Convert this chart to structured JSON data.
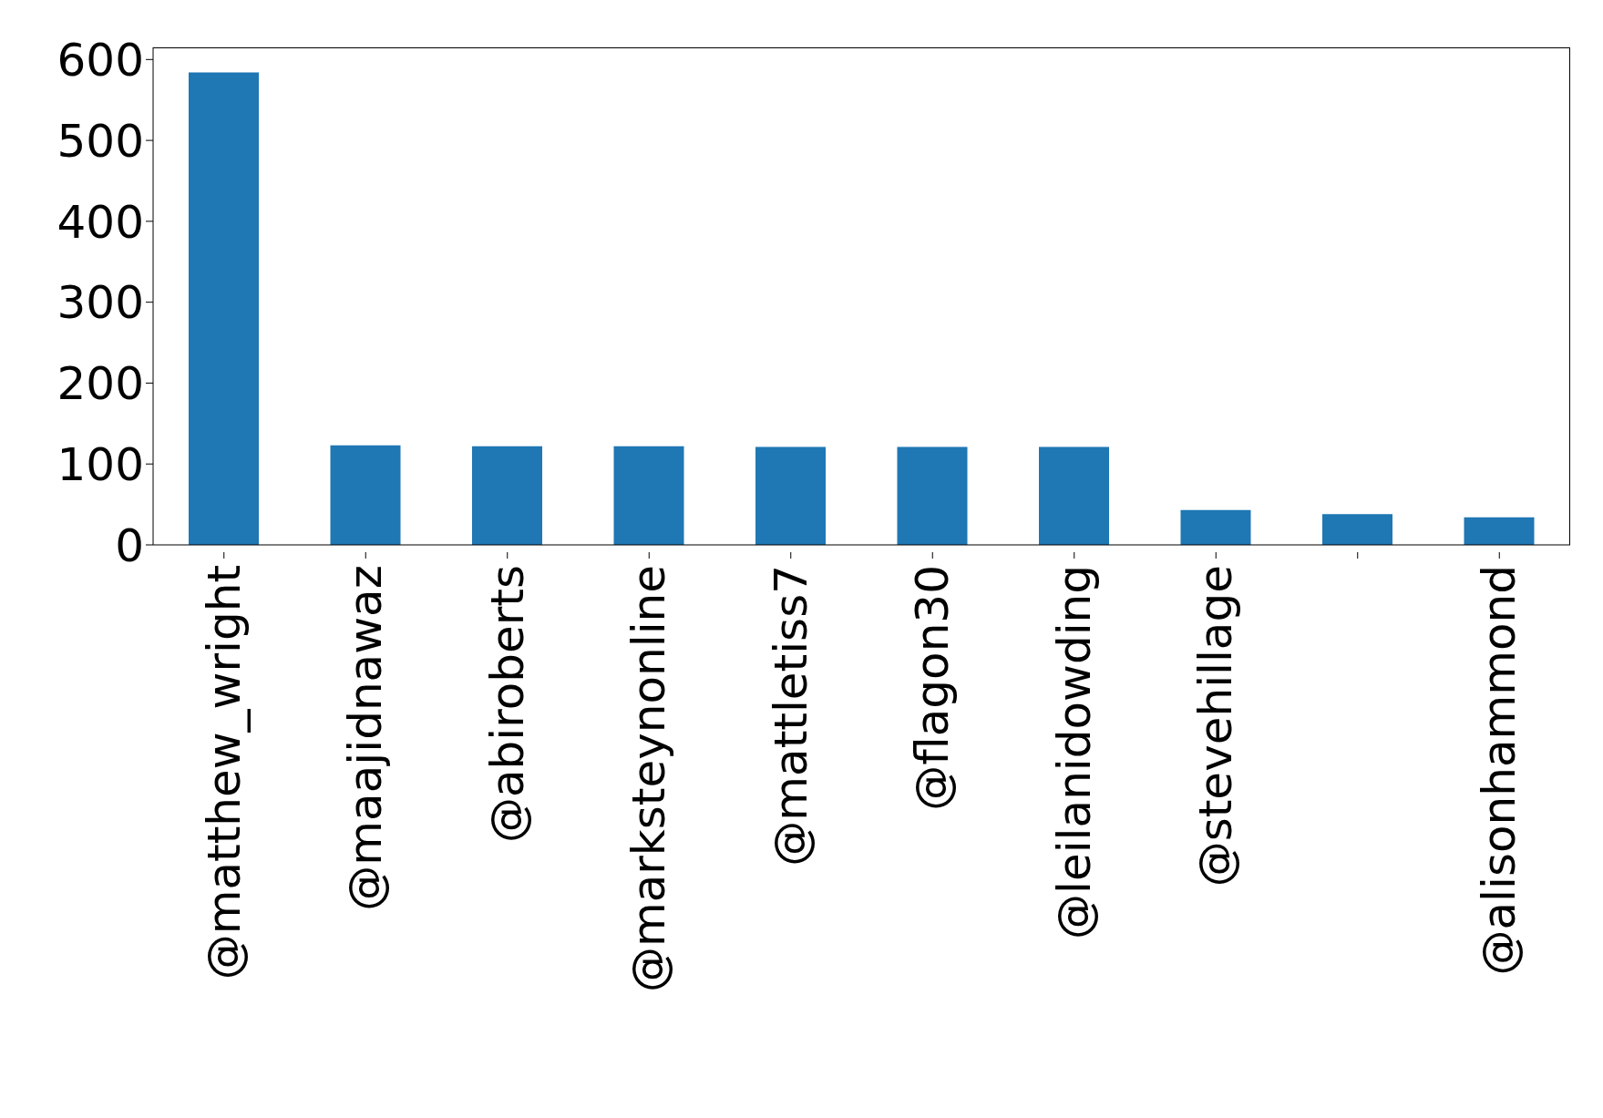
{
  "chart_data": {
    "type": "bar",
    "categories": [
      "@matthew_wright",
      "@maajidnawaz",
      "@abiroberts",
      "@marksteynonline",
      "@mattletiss7",
      "@flagon30",
      "@leilanidowding",
      "@stevehillage",
      null,
      "@alisonhammond"
    ],
    "values": [
      584,
      123,
      122,
      122,
      121,
      121,
      121,
      43,
      38,
      34
    ],
    "color": "#1f77b4",
    "ylim": [
      0,
      615
    ],
    "yticks": [
      0,
      100,
      200,
      300,
      400,
      500,
      600
    ]
  }
}
